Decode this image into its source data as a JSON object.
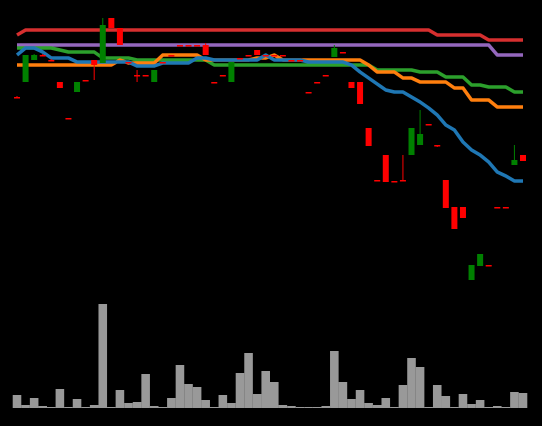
{
  "chart_data": {
    "type": "candlestick",
    "up_color": "#008000",
    "down_color": "#ff0000",
    "volume_color": "#999999",
    "ylim": [
      0,
      300
    ],
    "volume_ylim": [
      0,
      110
    ],
    "open": [
      203,
      218,
      240,
      245,
      240,
      218,
      182,
      208,
      220,
      240,
      237,
      282,
      272,
      238,
      225,
      225,
      218,
      238,
      245,
      255,
      255,
      255,
      255,
      218,
      225,
      218,
      242,
      245,
      250,
      245,
      245,
      245,
      240,
      240,
      208,
      218,
      225,
      243,
      248,
      218,
      218,
      172,
      120,
      145,
      119,
      120,
      145,
      155,
      176,
      155,
      120,
      93,
      93,
      20,
      34,
      35,
      93,
      93,
      135,
      145
    ],
    "high": [
      204,
      245,
      246,
      246,
      241,
      218,
      182,
      218,
      220,
      240,
      282,
      282,
      272,
      238,
      230,
      225,
      230,
      238,
      245,
      255,
      255,
      255,
      257,
      218,
      225,
      238,
      242,
      245,
      250,
      245,
      245,
      245,
      240,
      240,
      208,
      218,
      225,
      255,
      248,
      218,
      218,
      172,
      120,
      145,
      119,
      145,
      172,
      190,
      176,
      155,
      120,
      93,
      93,
      35,
      46,
      35,
      93,
      93,
      155,
      145
    ],
    "low": [
      202,
      218,
      240,
      245,
      240,
      212,
      182,
      208,
      220,
      220,
      237,
      272,
      255,
      238,
      218,
      225,
      218,
      238,
      245,
      255,
      255,
      255,
      245,
      218,
      225,
      218,
      242,
      245,
      245,
      245,
      245,
      245,
      240,
      240,
      208,
      218,
      225,
      243,
      248,
      212,
      196,
      154,
      120,
      118,
      119,
      120,
      145,
      155,
      176,
      153,
      92,
      71,
      82,
      20,
      34,
      35,
      93,
      93,
      135,
      139
    ],
    "close": [
      203,
      245,
      245,
      245,
      240,
      212,
      182,
      218,
      220,
      235,
      275,
      272,
      255,
      238,
      225,
      225,
      230,
      238,
      245,
      255,
      255,
      255,
      245,
      218,
      225,
      238,
      242,
      245,
      245,
      245,
      245,
      245,
      240,
      240,
      208,
      218,
      225,
      252,
      248,
      212,
      196,
      154,
      120,
      118,
      119,
      120,
      172,
      166,
      176,
      155,
      92,
      71,
      82,
      35,
      46,
      35,
      93,
      93,
      140,
      139
    ],
    "volume": [
      13,
      3,
      10,
      2,
      1,
      19,
      1,
      9,
      1,
      3,
      104,
      1,
      18,
      5,
      6,
      34,
      2,
      1,
      10,
      43,
      24,
      21,
      8,
      1,
      13,
      5,
      35,
      55,
      14,
      37,
      26,
      3,
      2,
      1,
      1,
      1,
      2,
      57,
      26,
      9,
      18,
      5,
      3,
      10,
      1,
      23,
      50,
      41,
      1,
      23,
      12,
      1,
      14,
      4,
      8,
      1,
      2,
      1,
      16,
      15
    ],
    "series": [
      {
        "color": "#d62f2f",
        "values": [
          265,
          270,
          270,
          270,
          270,
          270,
          270,
          270,
          270,
          270,
          270,
          270,
          270,
          270,
          270,
          270,
          270,
          270,
          270,
          270,
          270,
          270,
          270,
          270,
          270,
          270,
          270,
          270,
          270,
          270,
          270,
          270,
          270,
          270,
          270,
          270,
          270,
          270,
          270,
          270,
          270,
          270,
          270,
          270,
          270,
          270,
          270,
          270,
          270,
          265,
          265,
          265,
          265,
          265,
          265,
          260,
          260,
          260,
          260,
          260
        ]
      },
      {
        "color": "#9467bd",
        "values": [
          255,
          255,
          255,
          255,
          255,
          255,
          255,
          255,
          255,
          255,
          255,
          255,
          255,
          255,
          255,
          255,
          255,
          255,
          255,
          255,
          255,
          255,
          255,
          255,
          255,
          255,
          255,
          255,
          255,
          255,
          255,
          255,
          255,
          255,
          255,
          255,
          255,
          255,
          255,
          255,
          255,
          255,
          255,
          255,
          255,
          255,
          255,
          255,
          255,
          255,
          255,
          255,
          255,
          255,
          255,
          255,
          245,
          245,
          245,
          245
        ]
      },
      {
        "color": "#2ca02c",
        "values": [
          252,
          252,
          252,
          252,
          252,
          250,
          248,
          248,
          248,
          248,
          242,
          242,
          242,
          242,
          240,
          240,
          240,
          240,
          240,
          240,
          240,
          240,
          240,
          235,
          235,
          235,
          235,
          235,
          235,
          235,
          235,
          235,
          235,
          235,
          235,
          235,
          235,
          235,
          235,
          235,
          235,
          235,
          230,
          230,
          230,
          230,
          230,
          228,
          228,
          228,
          223,
          223,
          223,
          215,
          215,
          213,
          213,
          213,
          208,
          208
        ]
      },
      {
        "color": "#ff7f0e",
        "values": [
          235,
          235,
          235,
          235,
          235,
          235,
          235,
          235,
          235,
          235,
          235,
          235,
          240,
          237,
          237,
          237,
          237,
          245,
          245,
          245,
          245,
          245,
          240,
          240,
          240,
          240,
          240,
          240,
          242,
          242,
          245,
          240,
          240,
          240,
          240,
          240,
          240,
          240,
          240,
          240,
          240,
          235,
          228,
          228,
          228,
          222,
          222,
          218,
          218,
          218,
          218,
          212,
          212,
          200,
          200,
          200,
          193,
          193,
          193,
          193
        ]
      },
      {
        "color": "#1f77b4",
        "values": [
          245,
          252,
          252,
          248,
          242,
          242,
          242,
          238,
          238,
          238,
          238,
          238,
          238,
          238,
          234,
          234,
          234,
          237,
          237,
          237,
          237,
          242,
          242,
          240,
          240,
          240,
          240,
          240,
          240,
          245,
          240,
          240,
          240,
          240,
          238,
          238,
          238,
          238,
          238,
          235,
          228,
          222,
          216,
          210,
          208,
          208,
          203,
          198,
          192,
          185,
          175,
          170,
          158,
          150,
          145,
          138,
          128,
          124,
          119,
          119
        ]
      }
    ]
  }
}
